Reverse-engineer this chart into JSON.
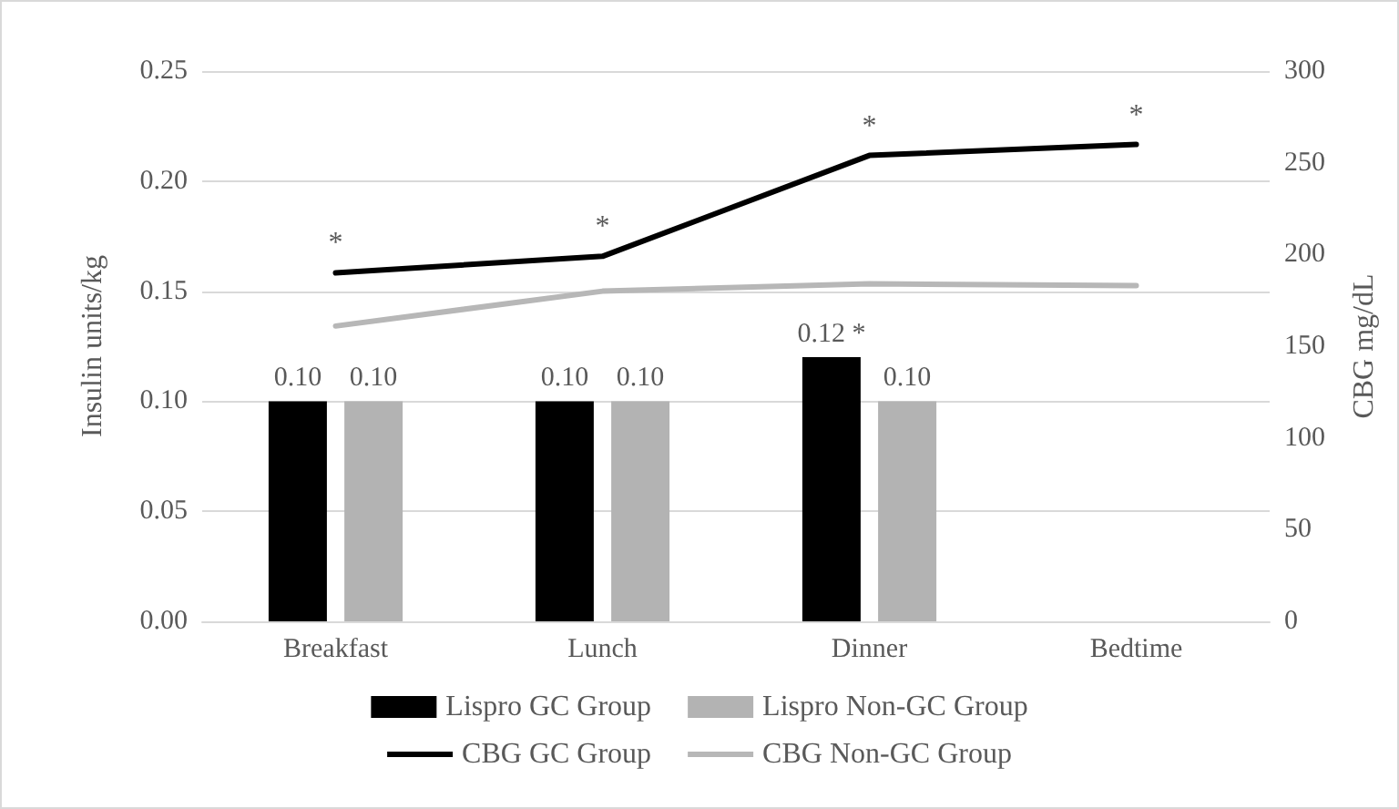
{
  "chart_data": {
    "type": "bar",
    "ylabel": "Insulin units/kg",
    "y2label": "CBG mg/dL",
    "categories": [
      "Breakfast",
      "Lunch",
      "Dinner",
      "Bedtime"
    ],
    "series": [
      {
        "name": "Lispro GC Group",
        "color": "#000000",
        "values": [
          0.1,
          0.1,
          0.12,
          null
        ],
        "value_labels": [
          "0.10",
          "0.10",
          "0.12 *",
          null
        ]
      },
      {
        "name": "Lispro Non-GC Group",
        "color": "#b3b3b3",
        "values": [
          0.1,
          0.1,
          0.1,
          null
        ],
        "value_labels": [
          "0.10",
          "0.10",
          "0.10",
          null
        ]
      },
      {
        "name": "CBG GC Group",
        "type": "line",
        "axis": "y2",
        "color": "#000000",
        "values": [
          190,
          199,
          254,
          260
        ],
        "value_labels": [
          "*",
          "*",
          "*",
          "*"
        ]
      },
      {
        "name": "CBG Non-GC Group",
        "type": "line",
        "axis": "y2",
        "color": "#b7b7b7",
        "values": [
          161,
          180,
          184,
          183
        ]
      }
    ],
    "ylim": [
      0,
      0.25
    ],
    "yticks": [
      {
        "value": 0,
        "label": "0.00"
      },
      {
        "value": 0.05,
        "label": "0.05"
      },
      {
        "value": 0.1,
        "label": "0.10"
      },
      {
        "value": 0.15,
        "label": "0.15"
      },
      {
        "value": 0.2,
        "label": "0.20"
      },
      {
        "value": 0.25,
        "label": "0.25"
      }
    ],
    "y2lim": [
      0,
      300
    ],
    "y2ticks": [
      0,
      50,
      100,
      150,
      200,
      250,
      300
    ],
    "grid": "y",
    "legend": "bottom",
    "marker": "none",
    "line_style": "solid"
  }
}
